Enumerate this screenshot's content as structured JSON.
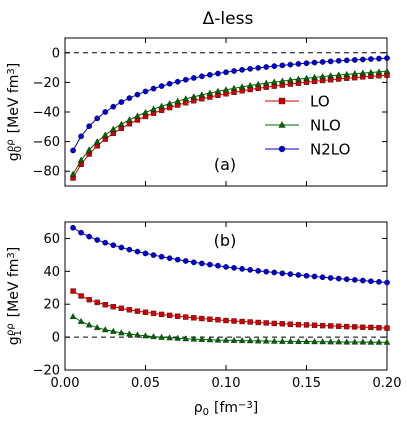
{
  "chart_data": [
    {
      "type": "line",
      "panel_label": "(a)",
      "title": "Δ-less",
      "xlabel": "",
      "ylabel": "g0 ρρ [MeV fm3]",
      "xlim": [
        0.0,
        0.2
      ],
      "ylim": [
        -90,
        10
      ],
      "xticks": [
        0.0,
        0.05,
        0.1,
        0.15,
        0.2
      ],
      "xticklabels": [
        "",
        "",
        "",
        "",
        ""
      ],
      "yticks": [
        -80,
        -60,
        -40,
        -20,
        0
      ],
      "yticklabels": [
        "−80",
        "−60",
        "−40",
        "−20",
        "0"
      ],
      "reference_line": 0,
      "legend_position": "center-right",
      "x": [
        0.005,
        0.01,
        0.015,
        0.02,
        0.025,
        0.03,
        0.035,
        0.04,
        0.045,
        0.05,
        0.055,
        0.06,
        0.065,
        0.07,
        0.075,
        0.08,
        0.085,
        0.09,
        0.095,
        0.1,
        0.105,
        0.11,
        0.115,
        0.12,
        0.125,
        0.13,
        0.135,
        0.14,
        0.145,
        0.15,
        0.155,
        0.16,
        0.165,
        0.17,
        0.175,
        0.18,
        0.185,
        0.19,
        0.195,
        0.2
      ],
      "series": [
        {
          "name": "LO",
          "color": "#cc0000",
          "marker": "square",
          "values": [
            -84.6,
            -75.3,
            -68.4,
            -62.9,
            -58.3,
            -54.4,
            -51.0,
            -48.0,
            -45.4,
            -43.0,
            -40.8,
            -38.8,
            -37.0,
            -35.3,
            -33.8,
            -32.4,
            -31.1,
            -29.9,
            -28.7,
            -27.7,
            -26.7,
            -25.7,
            -24.8,
            -24.0,
            -23.2,
            -22.5,
            -21.8,
            -21.1,
            -20.5,
            -19.9,
            -19.3,
            -18.7,
            -18.2,
            -17.7,
            -17.2,
            -16.8,
            -16.3,
            -15.9,
            -15.5,
            -15.1
          ]
        },
        {
          "name": "NLO",
          "color": "#006400",
          "marker": "triangle",
          "values": [
            -82.0,
            -72.5,
            -65.6,
            -60.1,
            -55.5,
            -51.6,
            -48.3,
            -45.3,
            -42.7,
            -40.3,
            -38.1,
            -36.1,
            -34.3,
            -32.7,
            -31.1,
            -29.7,
            -28.4,
            -27.2,
            -26.0,
            -25.0,
            -24.0,
            -23.0,
            -22.1,
            -21.3,
            -20.5,
            -19.8,
            -19.1,
            -18.4,
            -17.8,
            -17.2,
            -16.6,
            -16.1,
            -15.5,
            -15.0,
            -14.6,
            -14.1,
            -13.7,
            -13.3,
            -12.9,
            -12.5
          ]
        },
        {
          "name": "N2LO",
          "color": "#0000cc",
          "marker": "circle",
          "values": [
            -66.0,
            -56.4,
            -49.6,
            -44.3,
            -40.0,
            -36.4,
            -33.3,
            -30.6,
            -28.2,
            -26.1,
            -24.2,
            -22.5,
            -20.9,
            -19.5,
            -18.2,
            -17.0,
            -15.9,
            -14.9,
            -14.0,
            -13.1,
            -12.3,
            -11.5,
            -10.8,
            -10.2,
            -9.6,
            -9.0,
            -8.5,
            -8.0,
            -7.5,
            -7.0,
            -6.6,
            -6.2,
            -5.8,
            -5.4,
            -5.1,
            -4.8,
            -4.5,
            -4.2,
            -3.9,
            -3.6
          ]
        }
      ]
    },
    {
      "type": "line",
      "panel_label": "(b)",
      "xlabel": "ρ0 [fm−3]",
      "ylabel": "g1 ρρ [MeV fm3]",
      "xlim": [
        0.0,
        0.2
      ],
      "ylim": [
        -20,
        70
      ],
      "xticks": [
        0.0,
        0.05,
        0.1,
        0.15,
        0.2
      ],
      "xticklabels": [
        "0.00",
        "0.05",
        "0.10",
        "0.15",
        "0.20"
      ],
      "yticks": [
        -20,
        0,
        20,
        40,
        60
      ],
      "yticklabels": [
        "−20",
        "0",
        "20",
        "40",
        "60"
      ],
      "reference_line": 0,
      "x": [
        0.005,
        0.01,
        0.015,
        0.02,
        0.025,
        0.03,
        0.035,
        0.04,
        0.045,
        0.05,
        0.055,
        0.06,
        0.065,
        0.07,
        0.075,
        0.08,
        0.085,
        0.09,
        0.095,
        0.1,
        0.105,
        0.11,
        0.115,
        0.12,
        0.125,
        0.13,
        0.135,
        0.14,
        0.145,
        0.15,
        0.155,
        0.16,
        0.165,
        0.17,
        0.175,
        0.18,
        0.185,
        0.19,
        0.195,
        0.2
      ],
      "series": [
        {
          "name": "LO",
          "color": "#cc0000",
          "marker": "square",
          "values": [
            28.0,
            25.0,
            22.8,
            21.1,
            19.7,
            18.5,
            17.5,
            16.6,
            15.8,
            15.1,
            14.4,
            13.8,
            13.2,
            12.7,
            12.2,
            11.7,
            11.3,
            10.9,
            10.5,
            10.1,
            9.8,
            9.5,
            9.2,
            8.9,
            8.6,
            8.3,
            8.1,
            7.8,
            7.6,
            7.4,
            7.2,
            7.0,
            6.8,
            6.6,
            6.4,
            6.2,
            6.0,
            5.9,
            5.7,
            5.5
          ]
        },
        {
          "name": "NLO",
          "color": "#006400",
          "marker": "triangle",
          "values": [
            12.5,
            9.5,
            7.4,
            5.8,
            4.5,
            3.5,
            2.6,
            1.9,
            1.3,
            0.8,
            0.3,
            -0.1,
            -0.4,
            -0.7,
            -1.0,
            -1.2,
            -1.4,
            -1.6,
            -1.8,
            -1.9,
            -2.0,
            -2.1,
            -2.2,
            -2.3,
            -2.4,
            -2.5,
            -2.6,
            -2.6,
            -2.7,
            -2.7,
            -2.8,
            -2.8,
            -2.9,
            -2.9,
            -3.0,
            -3.0,
            -3.0,
            -3.1,
            -3.1,
            -3.1
          ]
        },
        {
          "name": "N2LO",
          "color": "#0000cc",
          "marker": "circle",
          "values": [
            66.5,
            63.5,
            61.1,
            59.1,
            57.4,
            55.9,
            54.5,
            53.2,
            52.0,
            50.9,
            49.9,
            48.9,
            48.0,
            47.1,
            46.3,
            45.5,
            44.8,
            44.1,
            43.4,
            42.7,
            42.1,
            41.5,
            40.9,
            40.3,
            39.8,
            39.3,
            38.8,
            38.3,
            37.8,
            37.3,
            36.9,
            36.4,
            36.0,
            35.6,
            35.2,
            34.8,
            34.4,
            34.0,
            33.6,
            33.2
          ]
        }
      ]
    }
  ]
}
